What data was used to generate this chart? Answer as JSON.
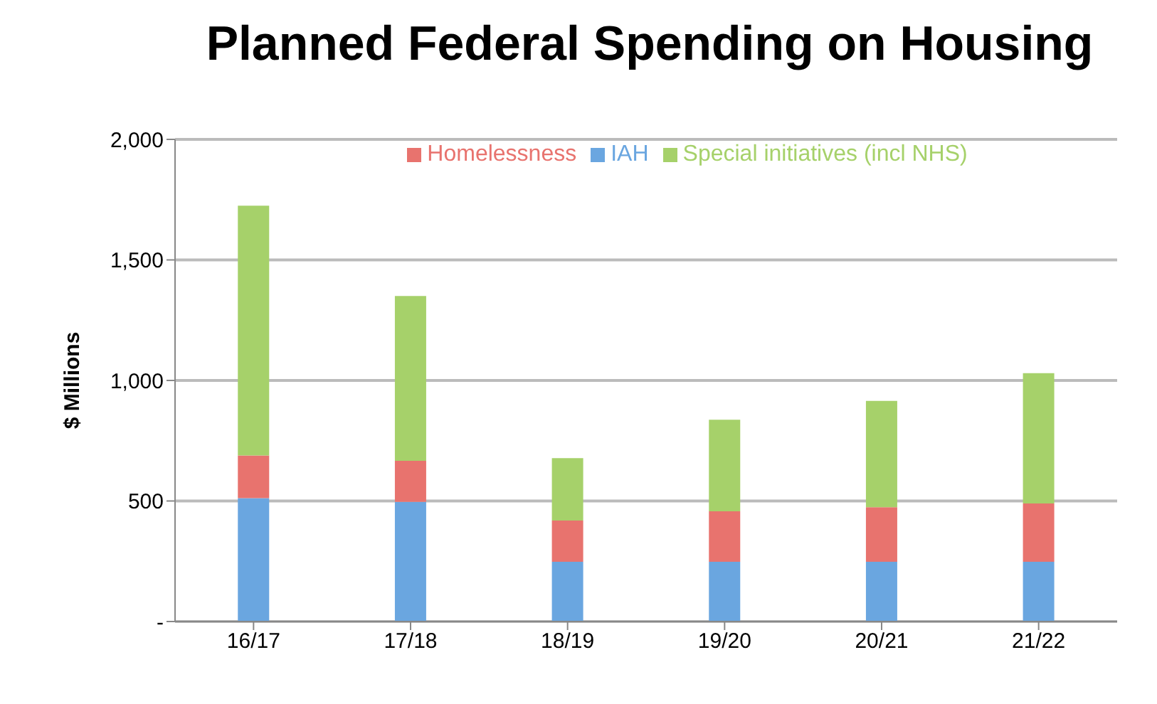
{
  "chart_data": {
    "type": "bar",
    "title": "Planned Federal Spending on Housing",
    "ylabel": "$ Millions",
    "categories": [
      "16/17",
      "17/18",
      "18/19",
      "19/20",
      "20/21",
      "21/22"
    ],
    "stacked": true,
    "series": [
      {
        "name": "IAH",
        "color": "#6aa6e0",
        "values": [
          512,
          496,
          248,
          248,
          248,
          248
        ]
      },
      {
        "name": "Homelessness",
        "color": "#e8736e",
        "values": [
          177,
          171,
          171,
          209,
          226,
          242
        ]
      },
      {
        "name": "Special initiatives (incl NHS)",
        "color": "#a6d16a",
        "values": [
          1036,
          683,
          259,
          380,
          441,
          540
        ]
      }
    ],
    "ylim": [
      0,
      2000
    ],
    "yticks": [
      {
        "value": 0,
        "label": "-"
      },
      {
        "value": 500,
        "label": "500"
      },
      {
        "value": 1000,
        "label": "1,000"
      },
      {
        "value": 1500,
        "label": "1,500"
      },
      {
        "value": 2000,
        "label": "2,000"
      }
    ],
    "grid": "y",
    "legend": "top"
  }
}
